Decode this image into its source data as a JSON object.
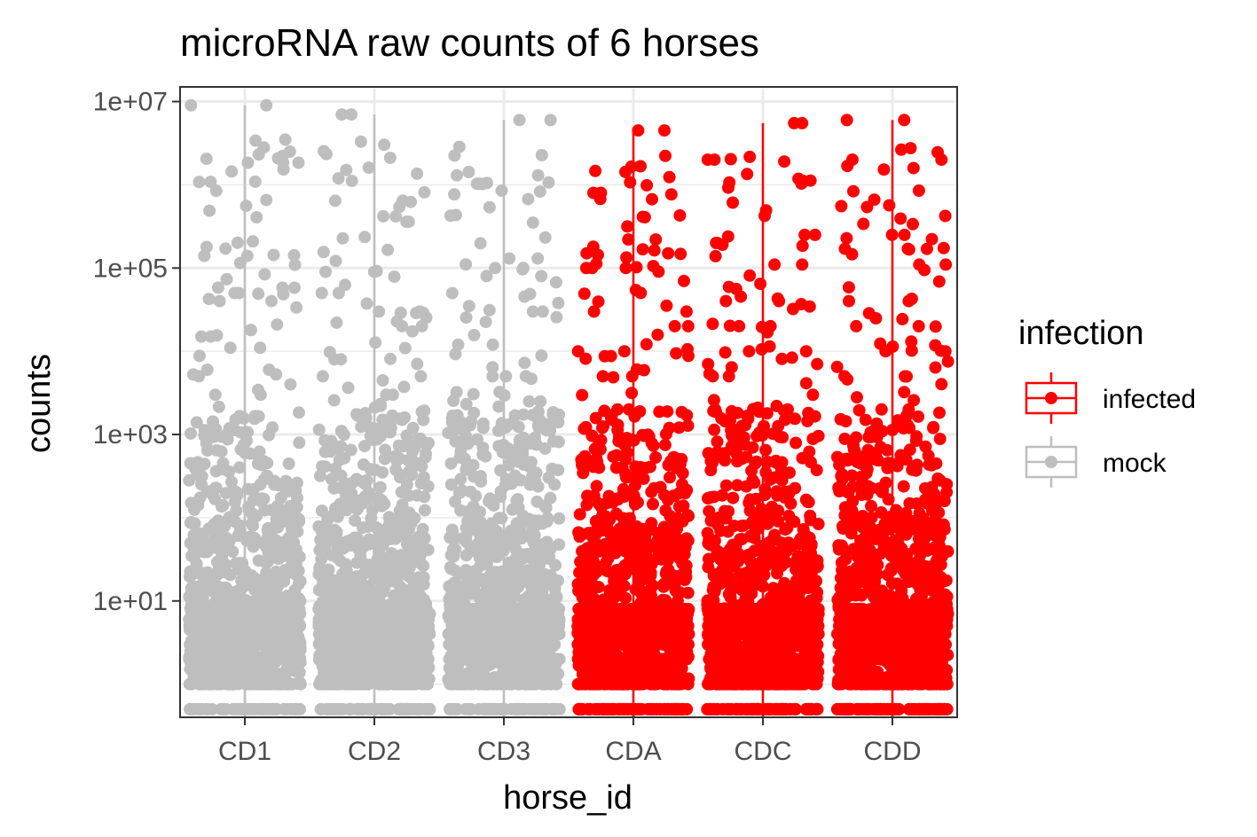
{
  "chart_data": {
    "type": "scatter",
    "subtype": "jitter-with-boxplot",
    "title": "microRNA raw counts of 6 horses",
    "xlabel": "horse_id",
    "ylabel": "counts",
    "y_scale": "log10",
    "ylim": [
      0.4,
      15000000
    ],
    "y_ticks": [
      {
        "value": 10,
        "label": "1e+01"
      },
      {
        "value": 1000,
        "label": "1e+03"
      },
      {
        "value": 100000,
        "label": "1e+05"
      },
      {
        "value": 10000000,
        "label": "1e+07"
      }
    ],
    "categories": [
      "CD1",
      "CD2",
      "CD3",
      "CDA",
      "CDC",
      "CDD"
    ],
    "grid": true,
    "legend": {
      "title": "infection",
      "position": "right",
      "entries": [
        {
          "label": "infected",
          "color": "#ff0000"
        },
        {
          "label": "mock",
          "color": "#bebebe"
        }
      ]
    },
    "groups": [
      {
        "category": "CD1",
        "infection": "mock",
        "max": 9000000,
        "median": 1,
        "outliers": [
          9000000,
          140000,
          58000,
          50000,
          40000,
          18000,
          15000,
          11000,
          6000,
          3000
        ]
      },
      {
        "category": "CD2",
        "infection": "mock",
        "max": 7000000,
        "median": 1,
        "outliers": [
          7000000,
          360000,
          90000,
          50000,
          30000,
          20000,
          8000,
          5000,
          3000,
          1500
        ]
      },
      {
        "category": "CD3",
        "infection": "mock",
        "max": 6000000,
        "median": 1,
        "outliers": [
          6000000,
          1300000,
          130000,
          100000,
          80000,
          30000,
          12000,
          5000,
          2500,
          1200
        ]
      },
      {
        "category": "CDA",
        "infection": "infected",
        "max": 4500000,
        "median": 1,
        "outliers": [
          4500000,
          800000,
          220000,
          150000,
          100000,
          30000,
          20000,
          10000,
          5000,
          2000
        ]
      },
      {
        "category": "CDC",
        "infection": "infected",
        "max": 5500000,
        "median": 1,
        "outliers": [
          5500000,
          2000000,
          250000,
          200000,
          110000,
          40000,
          20000,
          10000,
          5000,
          2000
        ]
      },
      {
        "category": "CDD",
        "infection": "infected",
        "max": 6000000,
        "median": 1,
        "outliers": [
          6000000,
          2000000,
          250000,
          170000,
          110000,
          40000,
          20000,
          10000,
          5000,
          2000
        ]
      }
    ],
    "colors": {
      "infected": "#ff0000",
      "mock": "#bebebe"
    }
  }
}
